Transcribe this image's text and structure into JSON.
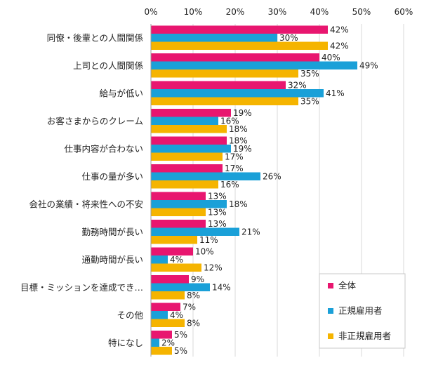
{
  "chart_data": {
    "type": "bar",
    "orientation": "horizontal",
    "xlim": [
      0,
      60
    ],
    "x_ticks": [
      "0%",
      "10%",
      "20%",
      "30%",
      "40%",
      "50%",
      "60%"
    ],
    "x_axis_position": "top",
    "grid": true,
    "legend_placement": "bottom-right",
    "categories": [
      "同僚・後輩との人間関係",
      "上司との人間関係",
      "給与が低い",
      "お客さまからのクレーム",
      "仕事内容が合わない",
      "仕事の量が多い",
      "会社の業績・将来性への不安",
      "勤務時間が長い",
      "通勤時間が長い",
      "目標・ミッションを達成でき…",
      "その他",
      "特になし"
    ],
    "series": [
      {
        "name": "全体",
        "color": "#e8166f",
        "values": [
          42,
          40,
          32,
          19,
          18,
          17,
          13,
          13,
          10,
          9,
          7,
          5
        ]
      },
      {
        "name": "正規雇用者",
        "color": "#1aa0d8",
        "values": [
          30,
          49,
          41,
          16,
          19,
          26,
          18,
          21,
          4,
          14,
          4,
          2
        ]
      },
      {
        "name": "非正規雇用者",
        "color": "#f5b400",
        "values": [
          42,
          35,
          35,
          18,
          17,
          16,
          13,
          11,
          12,
          8,
          8,
          5
        ]
      }
    ],
    "value_suffix": "%"
  }
}
